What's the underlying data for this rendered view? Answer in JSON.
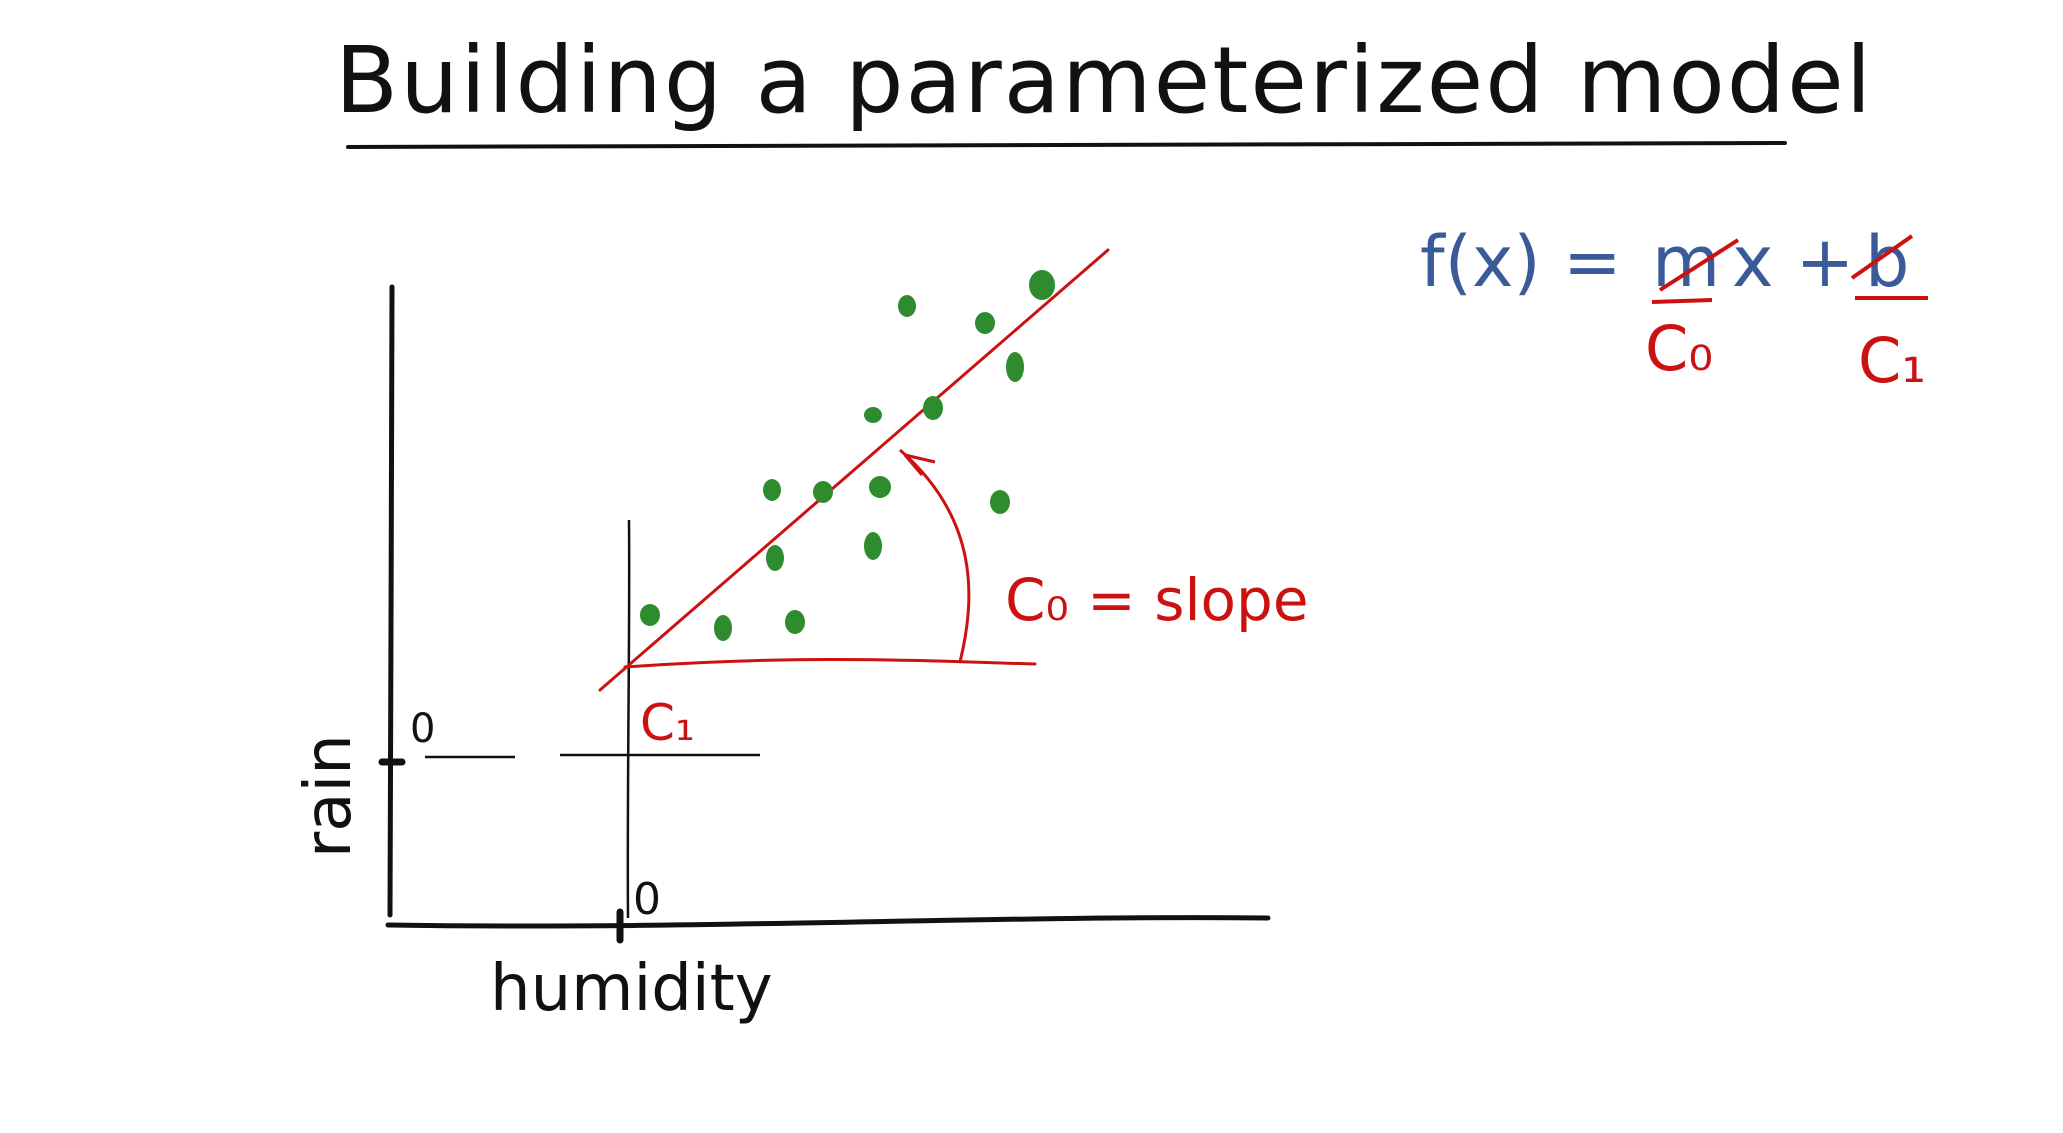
{
  "title": "Building a parameterized model",
  "formula": {
    "lhs": "f(x) =",
    "m": "m",
    "x_plus": "x +",
    "b": "b",
    "c0": "C₀",
    "c1": "C₁"
  },
  "labels": {
    "ylabel": "rain",
    "xlabel": "humidity",
    "y_zero": "0",
    "x_zero": "0",
    "intercept": "C₁",
    "slope_note": "C₀ = slope"
  },
  "colors": {
    "black_ink": "#111111",
    "red_ink": "#cc1111",
    "blue_ink": "#3b5a9a",
    "points": "#2e8b2e"
  }
}
